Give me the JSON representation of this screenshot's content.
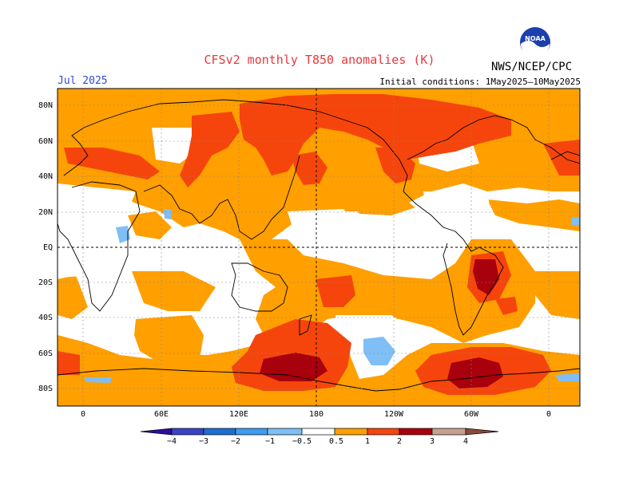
{
  "header": {
    "title": "CFSv2 monthly T850 anomalies (K)",
    "month": "Jul 2025",
    "initial_conditions": "Initial conditions: 1May2025–10May2025",
    "organization": "NWS/NCEP/CPC",
    "logo_text": "NOAA"
  },
  "axes": {
    "lat_labels": [
      "80N",
      "60N",
      "40N",
      "20N",
      "EQ",
      "20S",
      "40S",
      "60S",
      "80S"
    ],
    "lon_labels": [
      "0",
      "60E",
      "120E",
      "180",
      "120W",
      "60W",
      "0"
    ]
  },
  "colorbar": {
    "labels": [
      "−4",
      "−3",
      "−2",
      "−1",
      "−0.5",
      "0.5",
      "1",
      "2",
      "3",
      "4"
    ],
    "colors": {
      "lt_m4": "#2c0e9e",
      "m4_m3": "#3a43c6",
      "m3_m2": "#1f6fd0",
      "m2_m1": "#3f9df0",
      "m1_m05": "#7fbff5",
      "neutral": "#ffffff",
      "p05_1": "#ff9f00",
      "p1_2": "#f5450c",
      "p2_3": "#a8000c",
      "p3_4": "#c8a090",
      "gt_4": "#8a4a3a"
    }
  },
  "colors": {
    "title": "#e8383d",
    "month": "#2f4bd6",
    "warm_light": "#ff9f00",
    "warm_mid": "#f5450c",
    "warm_dark": "#a8000c",
    "cold_light": "#7fbff5"
  },
  "icons": [
    "noaa-logo"
  ]
}
